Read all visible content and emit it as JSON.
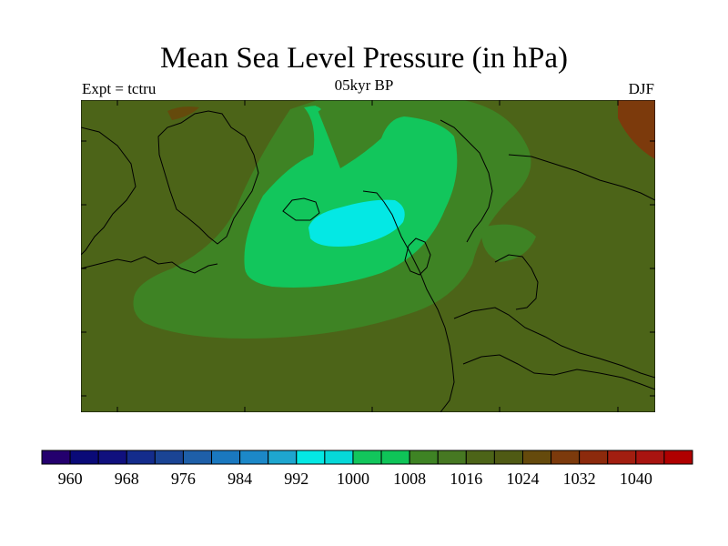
{
  "header": {
    "title": "Mean Sea Level Pressure (in hPa)",
    "subtitle": "05kyr BP",
    "left_label": "Expt = tctru",
    "right_label": "DJF"
  },
  "colorbar": {
    "colors": [
      "#24006e",
      "#0a0a78",
      "#10107e",
      "#142c8c",
      "#1a4494",
      "#1e5fa8",
      "#1a78bf",
      "#1c88c8",
      "#1ea6cf",
      "#04e8e4",
      "#06d8d8",
      "#12c65c",
      "#0fc458",
      "#3e8324",
      "#467822",
      "#4c6418",
      "#4f5a14",
      "#654a0c",
      "#7c3a0c",
      "#8c2a0c",
      "#a21e10",
      "#a81410",
      "#b00000"
    ],
    "tick_labels": [
      "960",
      "968",
      "976",
      "984",
      "992",
      "1000",
      "1008",
      "1016",
      "1024",
      "1032",
      "1040"
    ]
  },
  "map": {
    "background_color": "#4f5a14",
    "coastline_color": "#000000"
  }
}
